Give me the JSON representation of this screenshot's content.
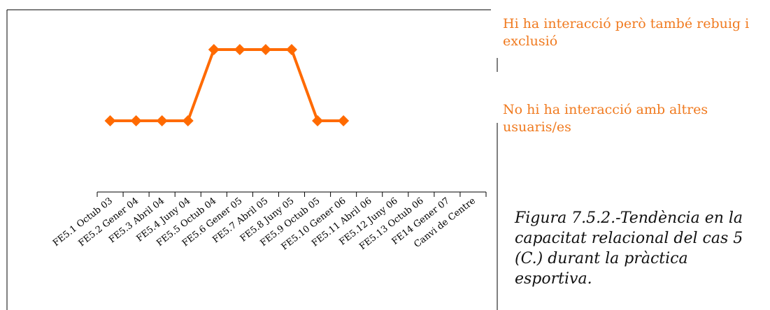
{
  "legend": {
    "top_label": "Hi ha interacció però també rebuig i exclusió",
    "bottom_label": "No hi ha interacció amb altres usuaris/es"
  },
  "caption": "Figura 7.5.2.-Tendència en la capacitat relacional del cas 5 (C.) durant la pràctica esportiva.",
  "colors": {
    "series": "#FF6A00",
    "label": "#F07A1F",
    "axis": "#000000"
  },
  "chart_data": {
    "type": "line",
    "categories": [
      "FE5.1 Octub 03",
      "FE5.2 Gener 04",
      "FE5.3 Abril 04",
      "FE5.4 Juny 04",
      "FE5.5 Octub 04",
      "FE5.6 Gener 05",
      "FE5.7 Abril 05",
      "FE5.8 Juny 05",
      "FE5.9 Octub 05",
      "FE5.10 Gener 06",
      "FE5.11 Abril 06",
      "FE5.12 Juny 06",
      "FE5.13 Octub 06",
      "FE14 Gener 07",
      "Canvi de Centre"
    ],
    "series": [
      {
        "values": [
          1,
          1,
          1,
          1,
          2,
          2,
          2,
          2,
          1,
          1,
          null,
          null,
          null,
          null,
          null
        ]
      }
    ],
    "ylim": [
      0,
      2.5
    ],
    "grid": false,
    "legend": "none"
  }
}
